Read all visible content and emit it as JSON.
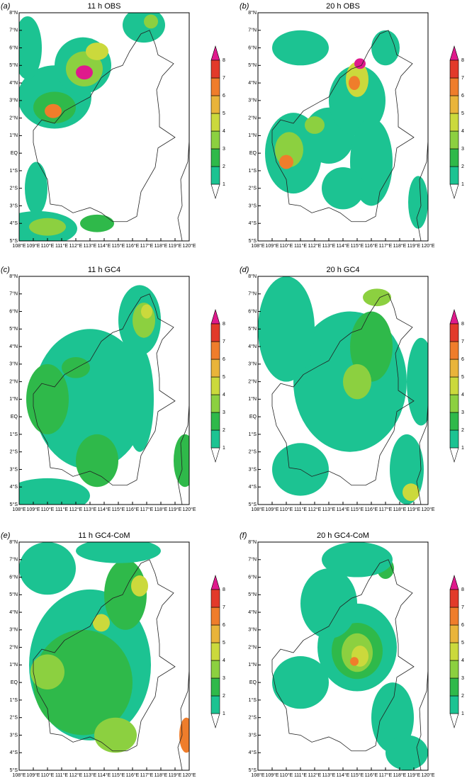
{
  "panels": [
    {
      "tag": "(a)",
      "title": "11 h OBS"
    },
    {
      "tag": "(b)",
      "title": "20 h OBS"
    },
    {
      "tag": "(c)",
      "title": "11 h GC4"
    },
    {
      "tag": "(d)",
      "title": "20 h GC4"
    },
    {
      "tag": "(e)",
      "title": "11 h GC4-CoM"
    },
    {
      "tag": "(f)",
      "title": "20 h GC4-CoM"
    }
  ],
  "xticks": [
    "108°E",
    "109°E",
    "110°E",
    "111°E",
    "112°E",
    "113°E",
    "114°E",
    "115°E",
    "116°E",
    "117°E",
    "118°E",
    "119°E",
    "120°E"
  ],
  "yticks": [
    "8°N",
    "7°N",
    "6°N",
    "5°N",
    "4°N",
    "3°N",
    "2°N",
    "1°N",
    "EQ",
    "1°S",
    "2°S",
    "3°S",
    "4°S",
    "5°S"
  ],
  "colorbar": {
    "levels": [
      1,
      2,
      3,
      4,
      5,
      6,
      7,
      8
    ],
    "colors": [
      "#ffffff",
      "#1cc392",
      "#2fb94a",
      "#8cd040",
      "#cbd93c",
      "#e9b43a",
      "#ef7d2b",
      "#e23a2a",
      "#df1a8c"
    ]
  }
}
